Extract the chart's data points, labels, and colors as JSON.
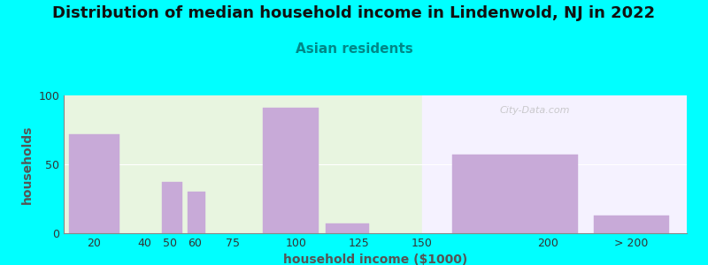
{
  "title": "Distribution of median household income in Lindenwold, NJ in 2022",
  "subtitle": "Asian residents",
  "xlabel": "household income ($1000)",
  "ylabel": "households",
  "background_color": "#00FFFF",
  "bar_color": "#c8aad8",
  "watermark": "City-Data.com",
  "title_fontsize": 13,
  "subtitle_fontsize": 11,
  "axis_label_fontsize": 10,
  "tick_fontsize": 9,
  "categories": [
    "20",
    "40",
    "50",
    "60",
    "75",
    "100",
    "125",
    "150",
    "200",
    "> 200"
  ],
  "bar_lefts": [
    10,
    37,
    47,
    57,
    65,
    87,
    112,
    137,
    162,
    218
  ],
  "bar_widths": [
    20,
    8,
    8,
    7,
    18,
    22,
    17,
    18,
    50,
    30
  ],
  "bar_heights": [
    72,
    0,
    37,
    30,
    0,
    91,
    7,
    0,
    57,
    13
  ],
  "xtick_pos": [
    20,
    40,
    50,
    60,
    75,
    100,
    125,
    150,
    200,
    233
  ],
  "xlim": [
    8,
    255
  ],
  "ylim": [
    0,
    100
  ],
  "yticks": [
    0,
    50,
    100
  ],
  "bg_split_x": 150,
  "bg_left_color": "#e8f5e0",
  "bg_right_color": "#f5f2ff"
}
